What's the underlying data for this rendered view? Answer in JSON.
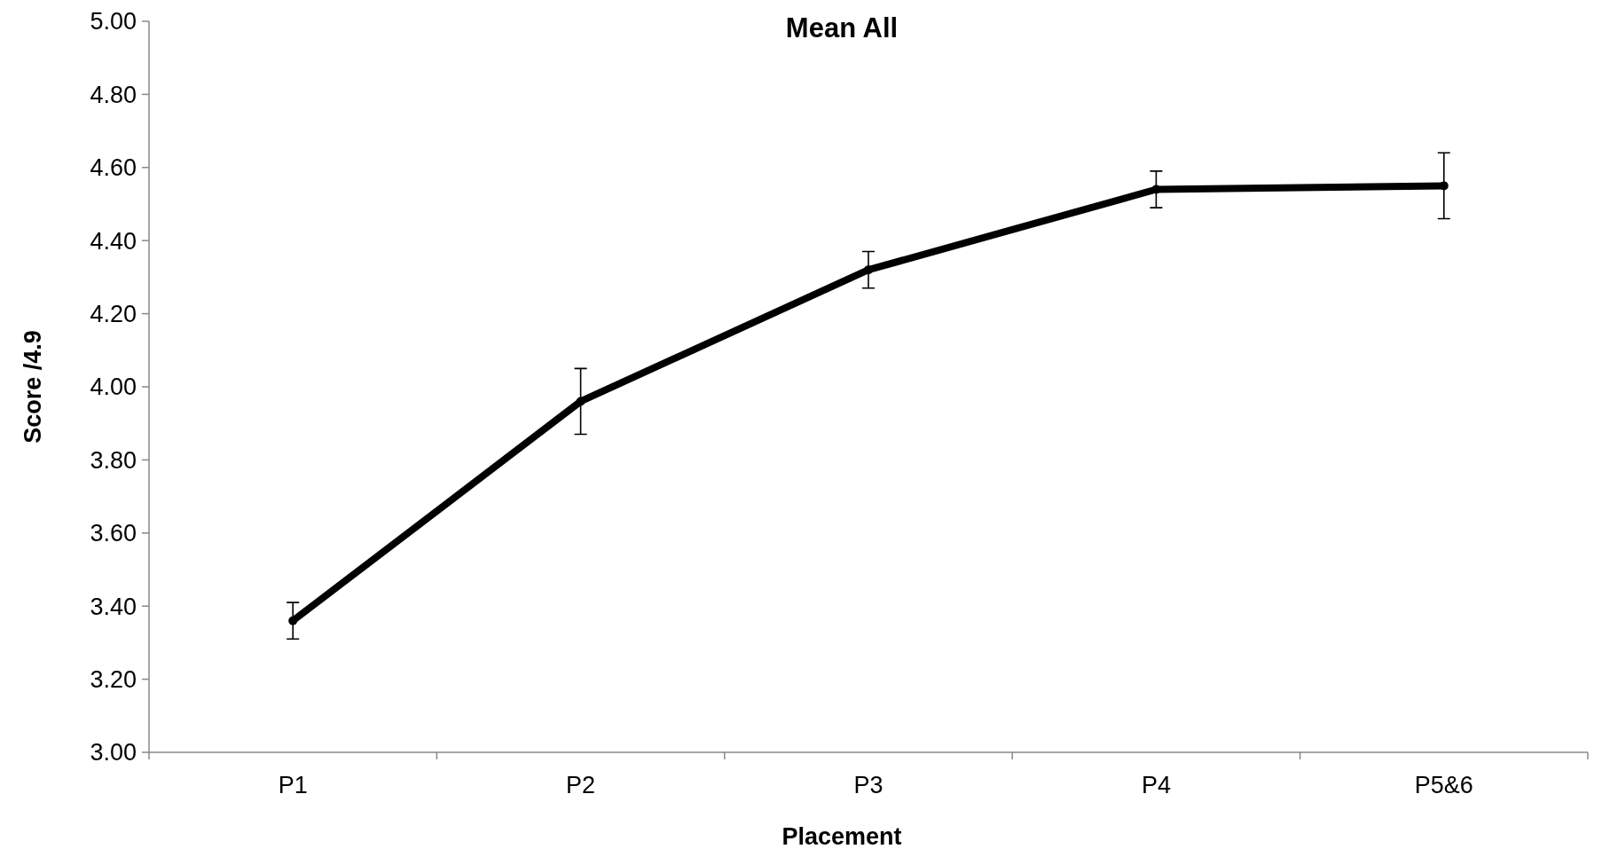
{
  "chart_data": {
    "type": "line",
    "title": "Mean All",
    "xlabel": "Placement",
    "ylabel": "Score /4.9",
    "categories": [
      "P1",
      "P2",
      "P3",
      "P4",
      "P5&6"
    ],
    "series": [
      {
        "color": "#000000",
        "values": [
          3.36,
          3.96,
          4.32,
          4.54,
          4.55
        ],
        "errors": [
          0.05,
          0.09,
          0.05,
          0.05,
          0.09
        ]
      }
    ],
    "ylim": [
      3,
      5
    ],
    "yticks": [
      {
        "value": 3,
        "label": "3.00"
      },
      {
        "value": 3.2,
        "label": "3.20"
      },
      {
        "value": 3.4,
        "label": "3.40"
      },
      {
        "value": 3.6,
        "label": "3.60"
      },
      {
        "value": 3.8,
        "label": "3.80"
      },
      {
        "value": 4,
        "label": "4.00"
      },
      {
        "value": 4.2,
        "label": "4.20"
      },
      {
        "value": 4.4,
        "label": "4.40"
      },
      {
        "value": 4.6,
        "label": "4.60"
      },
      {
        "value": 4.8,
        "label": "4.80"
      },
      {
        "value": 5,
        "label": "5.00"
      }
    ],
    "marker": "circle",
    "grid": false
  }
}
